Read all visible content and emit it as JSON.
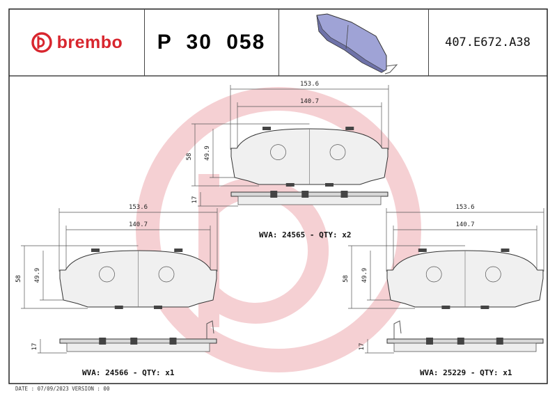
{
  "header": {
    "brand": "brembo",
    "part_number": "P 30 058",
    "reference": "407.E672.A38"
  },
  "colors": {
    "brand_red": "#d8262e",
    "watermark": "#f5d0d3",
    "pad_3d": "#9fa3d6"
  },
  "drawings": [
    {
      "id": "top",
      "width_outer": "153.6",
      "width_inner": "140.7",
      "height_outer": "58",
      "height_inner": "49.9",
      "thickness": "17",
      "caption": "WVA: 24565 - QTY: x2"
    },
    {
      "id": "left",
      "width_outer": "153.6",
      "width_inner": "140.7",
      "height_outer": "58",
      "height_inner": "49.9",
      "thickness": "17",
      "caption": "WVA: 24566 - QTY: x1"
    },
    {
      "id": "right",
      "width_outer": "153.6",
      "width_inner": "140.7",
      "height_outer": "58",
      "height_inner": "49.9",
      "thickness": "17",
      "caption": "WVA: 25229 - QTY: x1"
    }
  ],
  "footer": {
    "date_version": "DATE : 07/09/2023 VERSION : 00"
  }
}
